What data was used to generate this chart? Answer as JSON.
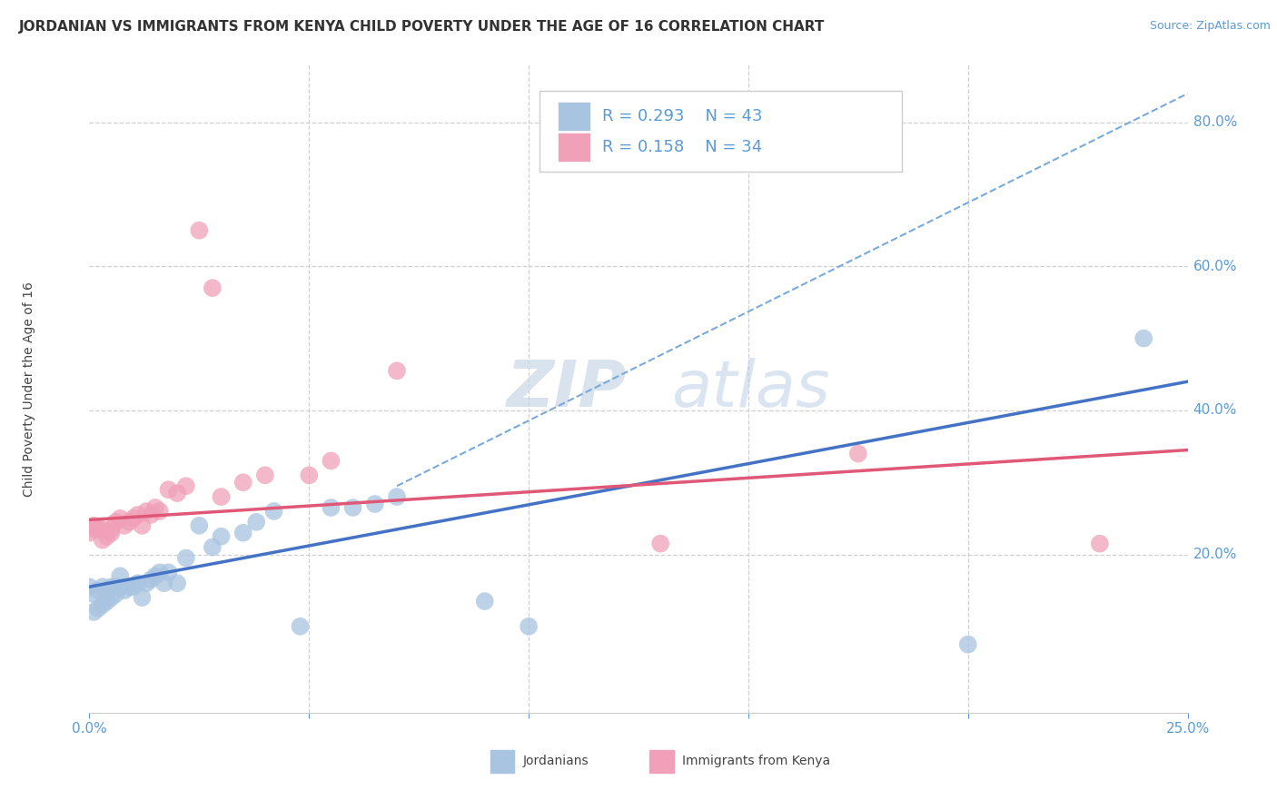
{
  "title": "JORDANIAN VS IMMIGRANTS FROM KENYA CHILD POVERTY UNDER THE AGE OF 16 CORRELATION CHART",
  "source": "Source: ZipAtlas.com",
  "ylabel": "Child Poverty Under the Age of 16",
  "xlim": [
    0.0,
    0.25
  ],
  "ylim": [
    -0.02,
    0.88
  ],
  "background_color": "#ffffff",
  "grid_color": "#d0d0d0",
  "jordanian_color": "#a8c4e0",
  "kenya_color": "#f0a0b8",
  "blue_line_color": "#4472c4",
  "pink_line_color": "#e05878",
  "dashed_line_color": "#7aaadc",
  "legend_R_jordanian": "0.293",
  "legend_N_jordanian": "43",
  "legend_R_kenya": "0.158",
  "legend_N_kenya": "34",
  "watermark_text": "ZIPatlas",
  "jordanian_x": [
    0.0,
    0.001,
    0.001,
    0.002,
    0.002,
    0.003,
    0.003,
    0.004,
    0.004,
    0.005,
    0.005,
    0.006,
    0.006,
    0.007,
    0.007,
    0.008,
    0.009,
    0.01,
    0.011,
    0.012,
    0.013,
    0.014,
    0.015,
    0.016,
    0.017,
    0.018,
    0.02,
    0.022,
    0.025,
    0.028,
    0.03,
    0.035,
    0.038,
    0.042,
    0.048,
    0.055,
    0.06,
    0.065,
    0.07,
    0.09,
    0.1,
    0.2,
    0.24
  ],
  "jordanian_y": [
    0.155,
    0.12,
    0.145,
    0.125,
    0.15,
    0.13,
    0.155,
    0.135,
    0.15,
    0.155,
    0.14,
    0.155,
    0.145,
    0.155,
    0.17,
    0.15,
    0.155,
    0.155,
    0.16,
    0.14,
    0.16,
    0.165,
    0.17,
    0.175,
    0.16,
    0.175,
    0.16,
    0.195,
    0.24,
    0.21,
    0.225,
    0.23,
    0.245,
    0.26,
    0.1,
    0.265,
    0.265,
    0.27,
    0.28,
    0.135,
    0.1,
    0.075,
    0.5
  ],
  "kenya_x": [
    0.0,
    0.001,
    0.001,
    0.002,
    0.003,
    0.003,
    0.004,
    0.005,
    0.005,
    0.006,
    0.007,
    0.008,
    0.009,
    0.01,
    0.011,
    0.012,
    0.013,
    0.014,
    0.015,
    0.016,
    0.018,
    0.02,
    0.022,
    0.025,
    0.028,
    0.03,
    0.035,
    0.04,
    0.05,
    0.055,
    0.07,
    0.13,
    0.175,
    0.23
  ],
  "kenya_y": [
    0.23,
    0.24,
    0.235,
    0.235,
    0.22,
    0.235,
    0.225,
    0.235,
    0.23,
    0.245,
    0.25,
    0.24,
    0.245,
    0.25,
    0.255,
    0.24,
    0.26,
    0.255,
    0.265,
    0.26,
    0.29,
    0.285,
    0.295,
    0.65,
    0.57,
    0.28,
    0.3,
    0.31,
    0.31,
    0.33,
    0.455,
    0.215,
    0.34,
    0.215
  ],
  "blue_line_x0": 0.0,
  "blue_line_y0": 0.155,
  "blue_line_x1": 0.25,
  "blue_line_y1": 0.44,
  "pink_line_x0": 0.0,
  "pink_line_y0": 0.248,
  "pink_line_x1": 0.25,
  "pink_line_y1": 0.345,
  "dashed_line_x0": 0.07,
  "dashed_line_y0": 0.295,
  "dashed_line_x1": 0.25,
  "dashed_line_y1": 0.84,
  "ytick_positions": [
    0.2,
    0.4,
    0.6,
    0.8
  ],
  "ytick_labels": [
    "20.0%",
    "40.0%",
    "60.0%",
    "80.0%"
  ]
}
